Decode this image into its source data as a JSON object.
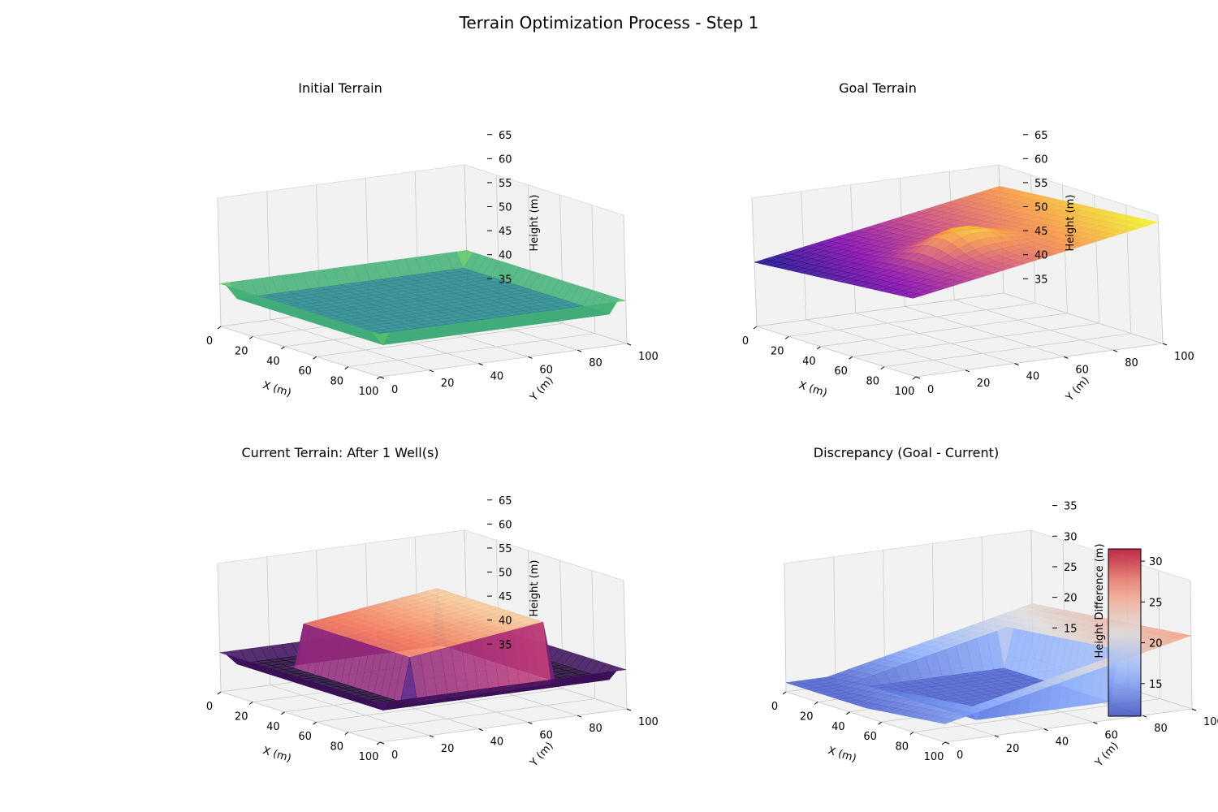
{
  "figure": {
    "title": "Terrain Optimization Process - Step 1"
  },
  "chart_data": [
    {
      "type": "surface3d",
      "title": "Initial Terrain",
      "colormap": "viridis",
      "xlabel": "X (m)",
      "ylabel": "Y (m)",
      "zlabel": "Height (m)",
      "x_ticks": [
        "0",
        "20",
        "40",
        "60",
        "80",
        "100"
      ],
      "y_ticks": [
        "0",
        "20",
        "40",
        "60",
        "80",
        "100"
      ],
      "z_ticks": [
        "35",
        "40",
        "45",
        "50",
        "55",
        "60",
        "65"
      ],
      "xlim": [
        0,
        100
      ],
      "ylim": [
        0,
        100
      ],
      "zlim": [
        32,
        68
      ],
      "surface": {
        "kind": "flat_with_rim",
        "base_height": 40,
        "rim_height": 44
      }
    },
    {
      "type": "surface3d",
      "title": "Goal Terrain",
      "colormap": "plasma",
      "xlabel": "X (m)",
      "ylabel": "Y (m)",
      "zlabel": "Height (m)",
      "x_ticks": [
        "0",
        "20",
        "40",
        "60",
        "80",
        "100"
      ],
      "y_ticks": [
        "0",
        "20",
        "40",
        "60",
        "80",
        "100"
      ],
      "z_ticks": [
        "35",
        "40",
        "45",
        "50",
        "55",
        "60",
        "65"
      ],
      "xlim": [
        0,
        100
      ],
      "ylim": [
        0,
        100
      ],
      "zlim": [
        32,
        68
      ],
      "surface": {
        "kind": "sloped_hill",
        "min_height": 50,
        "max_height": 66,
        "peak": [
          60,
          45
        ]
      }
    },
    {
      "type": "surface3d",
      "title": "Current Terrain: After 1 Well(s)",
      "colormap": "magma",
      "xlabel": "X (m)",
      "ylabel": "Y (m)",
      "zlabel": "Height (m)",
      "x_ticks": [
        "0",
        "20",
        "40",
        "60",
        "80",
        "100"
      ],
      "y_ticks": [
        "0",
        "20",
        "40",
        "60",
        "80",
        "100"
      ],
      "z_ticks": [
        "35",
        "40",
        "45",
        "50",
        "55",
        "60",
        "65"
      ],
      "xlim": [
        0,
        100
      ],
      "ylim": [
        0,
        100
      ],
      "zlim": [
        32,
        68
      ],
      "surface": {
        "kind": "flat_with_block",
        "base_height": 40,
        "block_height": 52,
        "block_x": [
          20,
          88
        ],
        "block_y": [
          20,
          75
        ]
      }
    },
    {
      "type": "surface3d",
      "title": "Discrepancy (Goal - Current)",
      "colormap": "coolwarm",
      "xlabel": "X (m)",
      "ylabel": "Y (m)",
      "zlabel": "",
      "x_ticks": [
        "0",
        "20",
        "40",
        "60",
        "80",
        "100"
      ],
      "y_ticks": [
        "0",
        "20",
        "40",
        "60",
        "80",
        "100"
      ],
      "z_ticks": [
        "15",
        "20",
        "25",
        "30",
        "35"
      ],
      "xlim": [
        0,
        100
      ],
      "ylim": [
        0,
        100
      ],
      "zlim": [
        10,
        38
      ],
      "surface": {
        "kind": "difference",
        "min_height": 12,
        "max_height": 31
      },
      "colorbar": {
        "label": "Height Difference (m)",
        "ticks": [
          "15",
          "20",
          "25",
          "30"
        ],
        "range": [
          11,
          31.5
        ]
      }
    }
  ]
}
